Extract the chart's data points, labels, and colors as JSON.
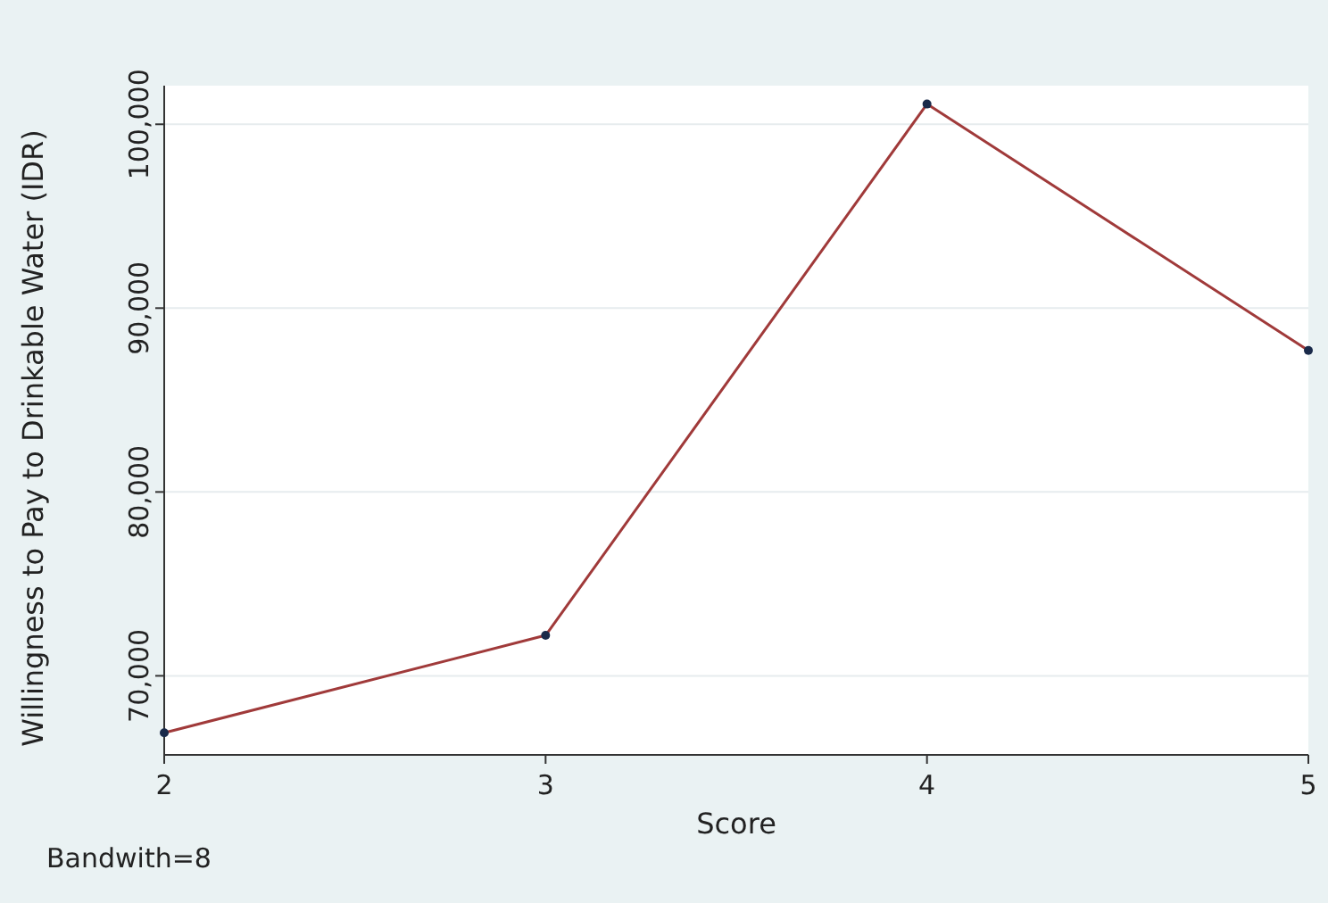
{
  "chart_data": {
    "type": "line",
    "xlabel": "Score",
    "ylabel": "Willingness to Pay to Drinkable Water (IDR)",
    "x": [
      2,
      3,
      4,
      5
    ],
    "series": [
      {
        "color": "#a03a3a",
        "values": [
          66900,
          72200,
          101100,
          87700
        ]
      }
    ],
    "xlim": [
      2,
      5
    ],
    "xticks": [
      2,
      3,
      4,
      5
    ],
    "ylim": [
      65700,
      102100
    ],
    "yticks": [
      {
        "value": 70000,
        "label": "70,000"
      },
      {
        "value": 80000,
        "label": "80,000"
      },
      {
        "value": 90000,
        "label": "90,000"
      },
      {
        "value": 100000,
        "label": "100,000"
      }
    ],
    "grid": "y",
    "marker": "circle",
    "line_style": "solid",
    "annotations": [
      "Bandwith=8"
    ]
  }
}
